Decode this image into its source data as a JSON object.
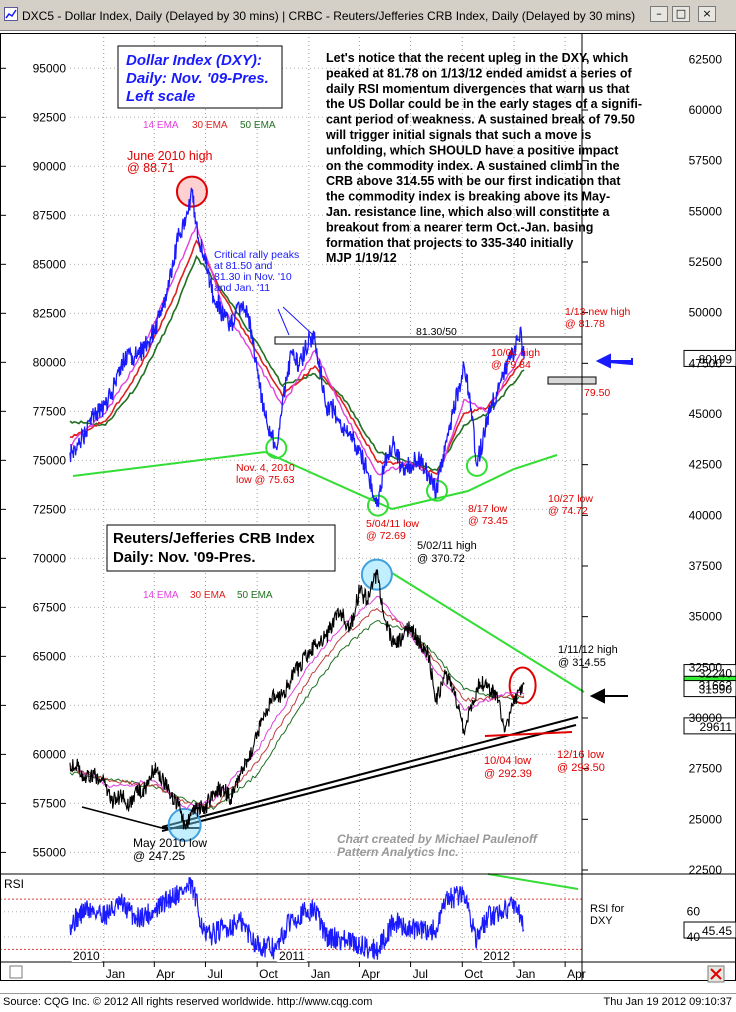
{
  "window": {
    "title": "DXC5 - Dollar Index, Daily (Delayed by 30 mins)   |   CRBC - Reuters/Jefferies CRB Index, Daily (Delayed by 30 mins)",
    "buttons": {
      "minimize": "–",
      "maximize": "□",
      "close": "×"
    }
  },
  "footer": {
    "left": "Source: CQG Inc. © 2012 All rights reserved worldwide. http://www.cqg.com",
    "right": "Thu Jan 19 2012 09:10:37"
  },
  "colors": {
    "dxy_price": "#1a1aff",
    "ema14": "#e040e0",
    "ema30": "#e02020",
    "ema50": "#207020",
    "crb_price": "#000000",
    "trend_green": "#33dd33",
    "rsi": "#1a1aff"
  },
  "chart_data": [
    {
      "type": "line",
      "title": "Dollar Index (DXY):\nDaily: Nov. '09-Pres.\nLeft scale",
      "title_lines": [
        "Dollar Index (DXY):",
        "Daily: Nov. '09-Pres.",
        "Left scale"
      ],
      "ylim": [
        54000,
        96800
      ],
      "y_ticks": [
        "95000",
        "92500",
        "90000",
        "87500",
        "85000",
        "82500",
        "80000",
        "77500",
        "75000",
        "72500",
        "70000",
        "67500",
        "65000",
        "62500",
        "60000",
        "57500",
        "55000"
      ],
      "y_tick_values": [
        95000,
        92500,
        90000,
        87500,
        85000,
        82500,
        80000,
        77500,
        75000,
        72500,
        70000,
        67500,
        65000,
        62500,
        60000,
        57500,
        55000
      ],
      "x_ticks": [
        "Jan",
        "Apr",
        "Jul",
        "Oct",
        "Jan",
        "Apr",
        "Jul",
        "Oct",
        "Jan",
        "Apr"
      ],
      "year_labels": [
        "2010",
        "2011",
        "2012"
      ],
      "legend": [
        {
          "name": "14 EMA",
          "color": "#e040e0"
        },
        {
          "name": "30 EMA",
          "color": "#e02020"
        },
        {
          "name": "50 EMA",
          "color": "#207020"
        }
      ],
      "last_value_label": "80199",
      "series": [
        {
          "name": "DXY",
          "x": [
            "2009-11-02",
            "2009-11-16",
            "2009-12-01",
            "2009-12-15",
            "2010-01-04",
            "2010-01-15",
            "2010-02-01",
            "2010-02-15",
            "2010-03-01",
            "2010-03-15",
            "2010-04-01",
            "2010-04-15",
            "2010-05-01",
            "2010-05-15",
            "2010-06-01",
            "2010-06-07",
            "2010-06-15",
            "2010-07-01",
            "2010-07-15",
            "2010-08-01",
            "2010-08-15",
            "2010-09-01",
            "2010-09-15",
            "2010-10-01",
            "2010-10-15",
            "2010-11-04",
            "2010-11-15",
            "2010-12-01",
            "2010-12-15",
            "2011-01-03",
            "2011-01-12",
            "2011-02-01",
            "2011-02-15",
            "2011-03-01",
            "2011-03-15",
            "2011-04-01",
            "2011-04-15",
            "2011-05-04",
            "2011-05-15",
            "2011-06-01",
            "2011-06-15",
            "2011-07-01",
            "2011-07-15",
            "2011-08-01",
            "2011-08-17",
            "2011-09-01",
            "2011-09-15",
            "2011-10-04",
            "2011-10-15",
            "2011-10-27",
            "2011-11-15",
            "2011-12-01",
            "2011-12-15",
            "2012-01-03",
            "2012-01-13",
            "2012-01-19"
          ],
          "y": [
            75400,
            75800,
            76500,
            77400,
            77800,
            78500,
            79800,
            80400,
            80300,
            80800,
            81600,
            82600,
            84400,
            86600,
            87800,
            88710,
            87000,
            85000,
            83400,
            82500,
            81800,
            82800,
            82500,
            79600,
            77300,
            75630,
            78000,
            80500,
            79800,
            81300,
            81100,
            77800,
            77600,
            76400,
            76300,
            75500,
            74400,
            72690,
            74800,
            75800,
            74600,
            74800,
            75100,
            74300,
            73450,
            75900,
            77500,
            79840,
            78000,
            74720,
            77200,
            78500,
            79600,
            80600,
            81780,
            80199
          ]
        },
        {
          "name": "14 EMA",
          "x": [
            "2009-11-02",
            "2010-01-04",
            "2010-03-01",
            "2010-05-01",
            "2010-06-15",
            "2010-08-01",
            "2010-10-01",
            "2010-11-15",
            "2011-01-12",
            "2011-03-01",
            "2011-05-04",
            "2011-07-01",
            "2011-08-17",
            "2011-10-04",
            "2011-11-15",
            "2012-01-19"
          ],
          "y": [
            75800,
            77400,
            80000,
            84000,
            87000,
            82800,
            80000,
            77800,
            80600,
            77600,
            74300,
            74900,
            74000,
            78100,
            77500,
            80700
          ]
        },
        {
          "name": "30 EMA",
          "x": [
            "2009-11-02",
            "2010-01-04",
            "2010-03-01",
            "2010-05-01",
            "2010-06-15",
            "2010-08-01",
            "2010-10-01",
            "2010-11-15",
            "2011-01-12",
            "2011-03-01",
            "2011-05-04",
            "2011-07-01",
            "2011-08-17",
            "2011-10-04",
            "2011-11-15",
            "2012-01-19"
          ],
          "y": [
            76200,
            77000,
            79400,
            83000,
            86200,
            83400,
            80500,
            78300,
            79800,
            78000,
            74900,
            74800,
            74300,
            77400,
            77700,
            80200
          ]
        },
        {
          "name": "50 EMA",
          "x": [
            "2009-11-02",
            "2010-01-04",
            "2010-03-01",
            "2010-05-01",
            "2010-06-15",
            "2010-08-01",
            "2010-10-01",
            "2010-11-15",
            "2011-01-12",
            "2011-03-01",
            "2011-05-04",
            "2011-07-01",
            "2011-08-17",
            "2011-10-04",
            "2011-11-15",
            "2012-01-19"
          ],
          "y": [
            77000,
            76800,
            78800,
            82200,
            85400,
            83600,
            81000,
            78800,
            79400,
            78300,
            75400,
            74900,
            74500,
            76800,
            77400,
            79600
          ]
        }
      ],
      "annotations": [
        {
          "text": "June 2010 high\n@ 88.71",
          "lines": [
            "June 2010 high",
            "@ 88.71"
          ],
          "color": "#e00000"
        },
        {
          "text": "Critical rally peaks\nat 81.50 and\n81.30 in Nov. '10\nand Jan. '11",
          "lines": [
            "Critical rally peaks",
            "at 81.50 and",
            "81.30 in Nov. '10",
            "and Jan. '11"
          ],
          "color": "#1a1aff"
        },
        {
          "text": "81.30/50",
          "lines": [
            "81.30/50"
          ],
          "color": "#000000"
        },
        {
          "text": "Nov. 4, 2010\nlow  @ 75.63",
          "lines": [
            "Nov. 4, 2010",
            "low  @ 75.63"
          ],
          "color": "#e00000"
        },
        {
          "text": "5/04/11 low\n@ 72.69",
          "lines": [
            "5/04/11 low",
            "@ 72.69"
          ],
          "color": "#e00000"
        },
        {
          "text": "8/17 low\n@ 73.45",
          "lines": [
            "8/17 low",
            "@ 73.45"
          ],
          "color": "#e00000"
        },
        {
          "text": "10/04 high\n@ 79.84",
          "lines": [
            "10/04 high",
            "@ 79.84"
          ],
          "color": "#e00000"
        },
        {
          "text": "1/13 new high\n@ 81.78",
          "lines": [
            "1/13 new high",
            "@ 81.78"
          ],
          "color": "#e00000"
        },
        {
          "text": "79.50",
          "lines": [
            "79.50"
          ],
          "color": "#e00000"
        },
        {
          "text": "10/27 low\n@ 74.72",
          "lines": [
            "10/27 low",
            "@ 74.72"
          ],
          "color": "#e00000"
        }
      ],
      "commentary": [
        "Let's notice that the recent upleg in the DXY, which",
        "peaked at 81.78 on 1/13/12 ended amidst a series of",
        "daily RSI momentum divergences that warn us that",
        "the US Dollar could be in the early stages of a signifi-",
        "cant period of weakness. A sustained break of 79.50",
        "will trigger initial signals that such a move is",
        "unfolding, which SHOULD have a positive impact",
        "on the commodity index. A sustained climb in the",
        "CRB above 314.55 with be our first indication that",
        "the commodity index is breaking above its May-",
        "Jan. resistance line, which also will constitute a",
        "breakout from a nearer term Oct.-Jan. basing",
        "formation that projects to 335-340 initially",
        "MJP 1/19/12"
      ]
    },
    {
      "type": "line",
      "title": "Reuters/Jefferies CRB Index\nDaily: Nov. '09-Pres.",
      "title_lines": [
        "Reuters/Jefferies CRB Index",
        "Daily: Nov. '09-Pres."
      ],
      "ylim": [
        22400,
        63800
      ],
      "y_ticks": [
        "62500",
        "60000",
        "57500",
        "55000",
        "52500",
        "50000",
        "47500",
        "45000",
        "42500",
        "40000",
        "37500",
        "35000",
        "32500",
        "30000",
        "27500",
        "25000",
        "22500"
      ],
      "y_tick_values": [
        62500,
        60000,
        57500,
        55000,
        52500,
        50000,
        47500,
        45000,
        42500,
        40000,
        37500,
        35000,
        32500,
        30000,
        27500,
        25000,
        22500
      ],
      "legend": [
        {
          "name": "14 EMA",
          "color": "#e040e0"
        },
        {
          "name": "30 EMA",
          "color": "#e02020"
        },
        {
          "name": "50 EMA",
          "color": "#207020"
        }
      ],
      "right_labels": [
        "32240",
        "31662",
        "31590",
        "29611"
      ],
      "series": [
        {
          "name": "CRB",
          "x": [
            "2009-11-02",
            "2009-11-16",
            "2009-12-01",
            "2009-12-15",
            "2010-01-04",
            "2010-01-15",
            "2010-02-01",
            "2010-02-15",
            "2010-03-01",
            "2010-03-15",
            "2010-04-01",
            "2010-04-15",
            "2010-05-01",
            "2010-05-15",
            "2010-05-25",
            "2010-06-15",
            "2010-07-01",
            "2010-07-15",
            "2010-08-01",
            "2010-08-15",
            "2010-09-01",
            "2010-09-15",
            "2010-10-01",
            "2010-10-15",
            "2010-11-01",
            "2010-11-15",
            "2010-12-01",
            "2010-12-15",
            "2011-01-03",
            "2011-01-15",
            "2011-02-01",
            "2011-02-15",
            "2011-03-01",
            "2011-03-15",
            "2011-04-01",
            "2011-04-15",
            "2011-05-02",
            "2011-05-15",
            "2011-06-01",
            "2011-06-15",
            "2011-07-01",
            "2011-07-15",
            "2011-08-01",
            "2011-08-15",
            "2011-09-01",
            "2011-09-15",
            "2011-10-04",
            "2011-10-15",
            "2011-11-01",
            "2011-11-15",
            "2011-12-01",
            "2011-12-16",
            "2012-01-03",
            "2012-01-11",
            "2012-01-19"
          ],
          "y": [
            27800,
            27600,
            27000,
            27200,
            26700,
            25900,
            26200,
            25600,
            26300,
            26500,
            27500,
            27100,
            26100,
            25700,
            24725,
            25500,
            25600,
            26300,
            26600,
            26000,
            27200,
            28000,
            29200,
            30200,
            31200,
            31100,
            32000,
            32500,
            33400,
            33600,
            34000,
            34900,
            35200,
            34300,
            36300,
            35800,
            37072,
            34900,
            33600,
            33900,
            34500,
            33800,
            33300,
            30800,
            32200,
            31400,
            29239,
            30500,
            31800,
            31500,
            31200,
            29350,
            30900,
            31455,
            31662
          ]
        },
        {
          "name": "14 EMA",
          "x": [
            "2009-11-02",
            "2010-01-15",
            "2010-04-01",
            "2010-05-25",
            "2010-07-15",
            "2010-10-01",
            "2011-01-03",
            "2011-03-01",
            "2011-05-02",
            "2011-07-01",
            "2011-08-15",
            "2011-10-04",
            "2011-12-01",
            "2012-01-19"
          ],
          "y": [
            27700,
            26600,
            26900,
            25600,
            25900,
            28400,
            32700,
            34500,
            36000,
            34100,
            32300,
            30400,
            31100,
            31200
          ]
        },
        {
          "name": "30 EMA",
          "x": [
            "2009-11-02",
            "2010-01-15",
            "2010-04-01",
            "2010-05-25",
            "2010-07-15",
            "2010-10-01",
            "2011-01-03",
            "2011-03-01",
            "2011-05-02",
            "2011-07-01",
            "2011-08-15",
            "2011-10-04",
            "2011-12-01",
            "2012-01-19"
          ],
          "y": [
            27500,
            26900,
            26700,
            25800,
            25600,
            27800,
            32000,
            34000,
            35400,
            34300,
            32800,
            30900,
            31000,
            31100
          ]
        },
        {
          "name": "50 EMA",
          "x": [
            "2009-11-02",
            "2010-01-15",
            "2010-04-01",
            "2010-05-25",
            "2010-07-15",
            "2010-10-01",
            "2011-01-03",
            "2011-03-01",
            "2011-05-02",
            "2011-07-01",
            "2011-08-15",
            "2011-10-04",
            "2011-12-01",
            "2012-01-19"
          ],
          "y": [
            27300,
            27000,
            26600,
            26000,
            25500,
            27200,
            31300,
            33400,
            34800,
            34300,
            33100,
            31400,
            31000,
            31000
          ]
        }
      ],
      "annotations": [
        {
          "text": "5/02/11 high\n@ 370.72",
          "lines": [
            "5/02/11 high",
            "@ 370.72"
          ],
          "color": "#000000"
        },
        {
          "text": "1/11/12 high\n@ 314.55",
          "lines": [
            "1/11/12 high",
            "@ 314.55"
          ],
          "color": "#000000"
        },
        {
          "text": "10/04 low\n@ 292.39",
          "lines": [
            "10/04 low",
            "@ 292.39"
          ],
          "color": "#e00000"
        },
        {
          "text": "12/16 low\n@ 293.50",
          "lines": [
            "12/16 low",
            "@ 293.50"
          ],
          "color": "#e00000"
        },
        {
          "text": "May 2010 low\n@ 247.25",
          "lines": [
            "May 2010 low",
            "@ 247.25"
          ],
          "color": "#000000"
        },
        {
          "text": "Chart created by Michael Paulenoff\nPattern Analytics Inc.",
          "lines": [
            "Chart created by Michael Paulenoff",
            "Pattern Analytics Inc."
          ],
          "color": "#999999"
        }
      ]
    },
    {
      "type": "line",
      "title": "RSI",
      "ylim": [
        20,
        90
      ],
      "y_ticks": [
        "60",
        "40"
      ],
      "y_tick_values": [
        60,
        40
      ],
      "last_value_label": "45.45",
      "label": "RSI for\nDXY",
      "label_lines": [
        "RSI for",
        "DXY"
      ],
      "series": [
        {
          "name": "RSI",
          "x": [
            "2009-11-02",
            "2009-12-01",
            "2010-01-04",
            "2010-02-01",
            "2010-03-01",
            "2010-04-01",
            "2010-05-01",
            "2010-06-07",
            "2010-07-01",
            "2010-08-01",
            "2010-09-01",
            "2010-10-01",
            "2010-11-04",
            "2010-12-01",
            "2011-01-12",
            "2011-02-01",
            "2011-03-01",
            "2011-04-01",
            "2011-05-04",
            "2011-06-01",
            "2011-07-01",
            "2011-08-17",
            "2011-09-01",
            "2011-10-04",
            "2011-10-27",
            "2011-11-15",
            "2011-12-15",
            "2012-01-03",
            "2012-01-13",
            "2012-01-19"
          ],
          "y": [
            50,
            62,
            58,
            66,
            55,
            60,
            72,
            80,
            40,
            46,
            52,
            34,
            30,
            55,
            62,
            40,
            38,
            33,
            30,
            52,
            46,
            45,
            68,
            75,
            38,
            55,
            62,
            66,
            58,
            45
          ]
        }
      ]
    }
  ]
}
